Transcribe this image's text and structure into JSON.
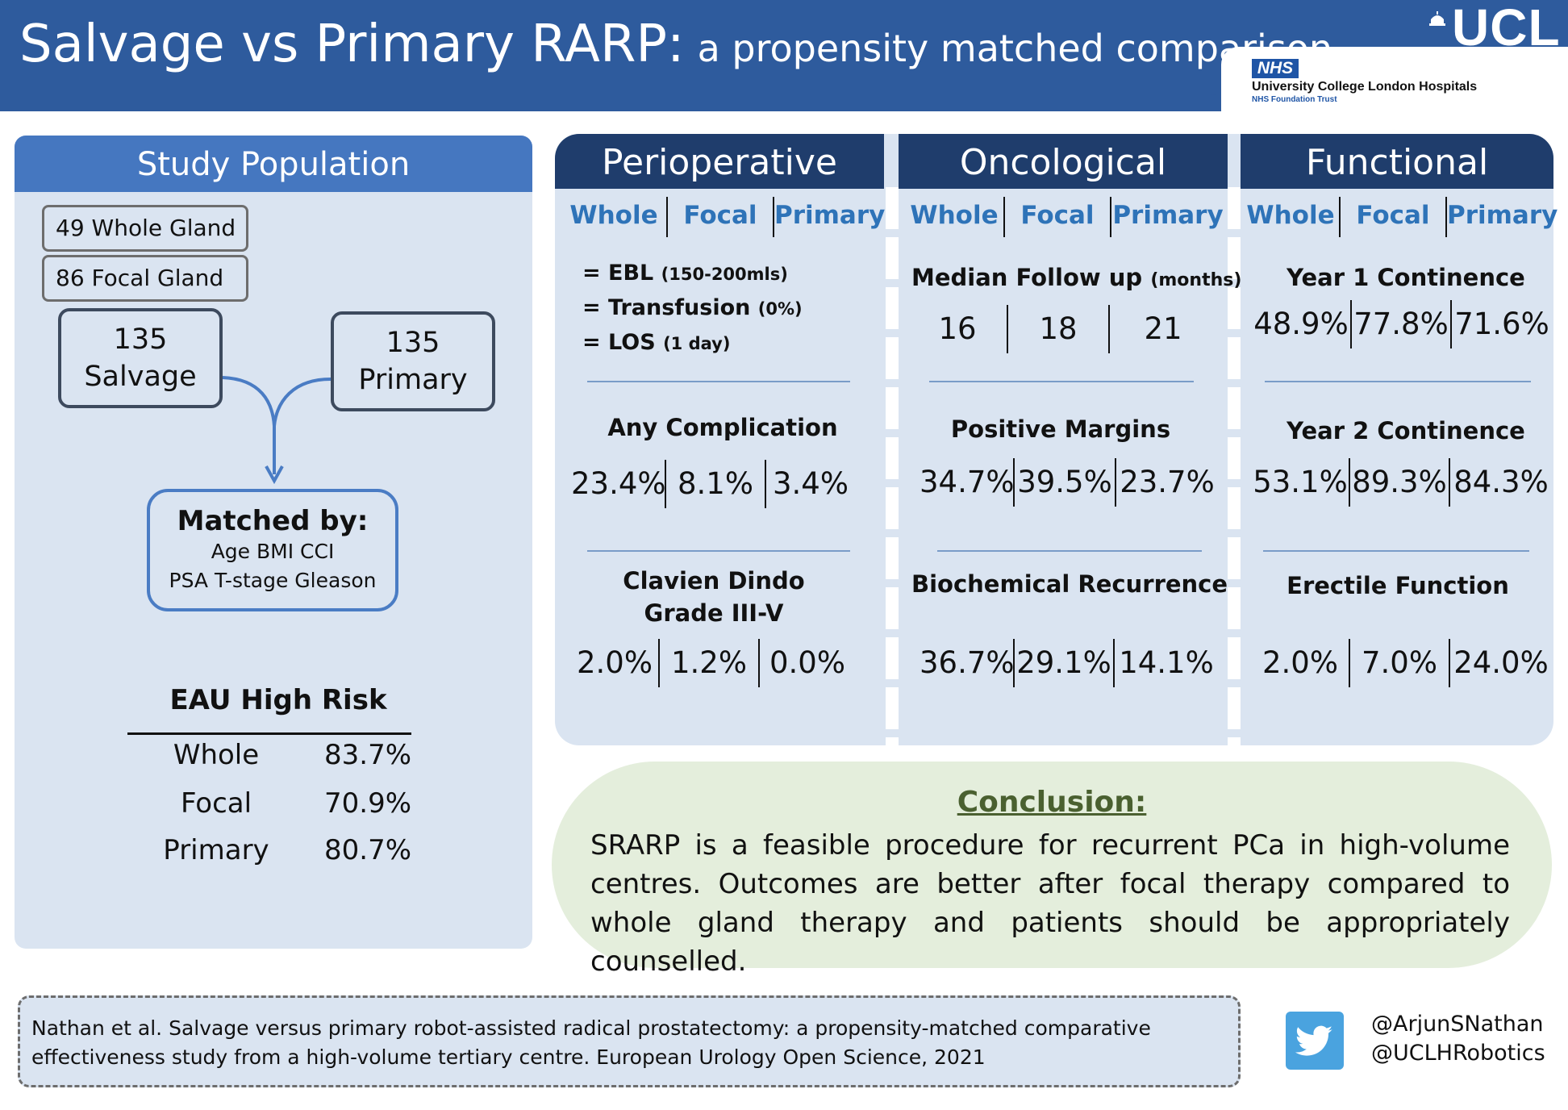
{
  "header": {
    "title_main": "Salvage vs Primary RARP:",
    "title_sub": "a propensity matched comparison",
    "nhs_badge": "NHS",
    "nhs_trust_name": "University College London Hospitals",
    "nhs_trust_sub": "NHS Foundation Trust",
    "ucl_logo": "UCL",
    "colors": {
      "header_blue": "#2e5b9d",
      "section_navy": "#1f3d6c",
      "panel_blue": "#dae4f1",
      "subheader_blue": "#2e73b8",
      "conclusion_green": "#e4eedc"
    }
  },
  "study_population": {
    "title": "Study Population",
    "whole_gland": "49 Whole Gland",
    "focal_gland": "86 Focal Gland",
    "salvage_count": "135",
    "salvage_label": "Salvage",
    "primary_count": "135",
    "primary_label": "Primary",
    "matched_title": "Matched by:",
    "matched_line1": "Age BMI CCI",
    "matched_line2": "PSA T-stage Gleason",
    "eau_title": "EAU High Risk",
    "eau_rows": [
      {
        "label": "Whole",
        "value": "83.7%"
      },
      {
        "label": "Focal",
        "value": "70.9%"
      },
      {
        "label": "Primary",
        "value": "80.7%"
      }
    ]
  },
  "group_labels": [
    "Whole",
    "Focal",
    "Primary"
  ],
  "perioperative": {
    "title": "Perioperative",
    "list": [
      {
        "label": "= EBL",
        "detail": "(150-200mls)"
      },
      {
        "label": "= Transfusion",
        "detail": "(0%)"
      },
      {
        "label": "= LOS",
        "detail": "(1 day)"
      }
    ],
    "complication_title": "Any Complication",
    "complication_values": [
      "23.4%",
      "8.1%",
      "3.4%"
    ],
    "clavien_title_1": "Clavien Dindo",
    "clavien_title_2": "Grade III-V",
    "clavien_values": [
      "2.0%",
      "1.2%",
      "0.0%"
    ]
  },
  "oncological": {
    "title": "Oncological",
    "followup_title": "Median Follow up",
    "followup_unit": "(months)",
    "followup_values": [
      "16",
      "18",
      "21"
    ],
    "margins_title": "Positive Margins",
    "margins_values": [
      "34.7%",
      "39.5%",
      "23.7%"
    ],
    "recurrence_title": "Biochemical Recurrence",
    "recurrence_values": [
      "36.7%",
      "29.1%",
      "14.1%"
    ]
  },
  "functional": {
    "title": "Functional",
    "year1_title": "Year 1 Continence",
    "year1_values": [
      "48.9%",
      "77.8%",
      "71.6%"
    ],
    "year2_title": "Year 2 Continence",
    "year2_values": [
      "53.1%",
      "89.3%",
      "84.3%"
    ],
    "erectile_title": "Erectile Function",
    "erectile_values": [
      "2.0%",
      "7.0%",
      "24.0%"
    ]
  },
  "conclusion": {
    "title": "Conclusion:",
    "text": "SRARP is a feasible procedure for recurrent PCa in high-volume centres. Outcomes are better after focal therapy compared to whole gland therapy and patients should be appropriately counselled."
  },
  "citation": {
    "text": "Nathan et al. Salvage versus primary robot-assisted radical prostatectomy: a propensity-matched comparative effectiveness study from a high-volume tertiary centre. European Urology Open Science, 2021"
  },
  "social": {
    "icon": "twitter-icon",
    "handle_1": "@ArjunSNathan",
    "handle_2": "@UCLHRobotics"
  }
}
